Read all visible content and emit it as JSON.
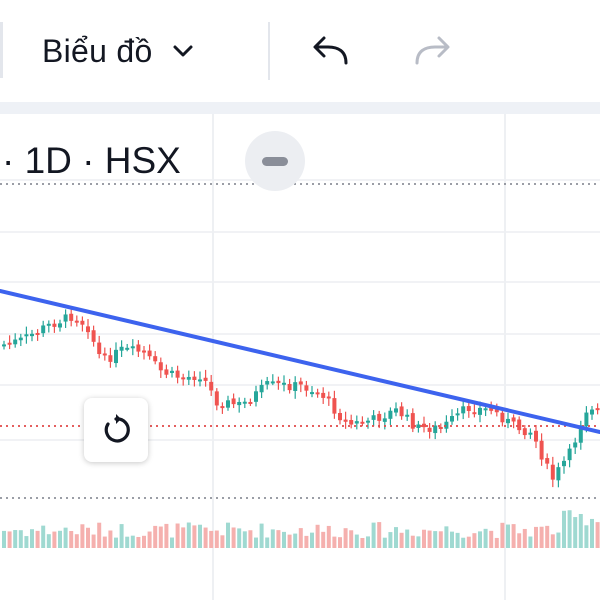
{
  "toolbar": {
    "chart_type_label": "Biểu đồ",
    "undo_icon": "undo-arrow",
    "redo_icon": "redo-arrow"
  },
  "legend": {
    "text": "· 1D · HSX"
  },
  "reset_icon": "rotate-ccw",
  "colors": {
    "up": "#26a69a",
    "down": "#ef5350",
    "trendline": "#3d63ee",
    "price_line": "#e04848"
  }
}
